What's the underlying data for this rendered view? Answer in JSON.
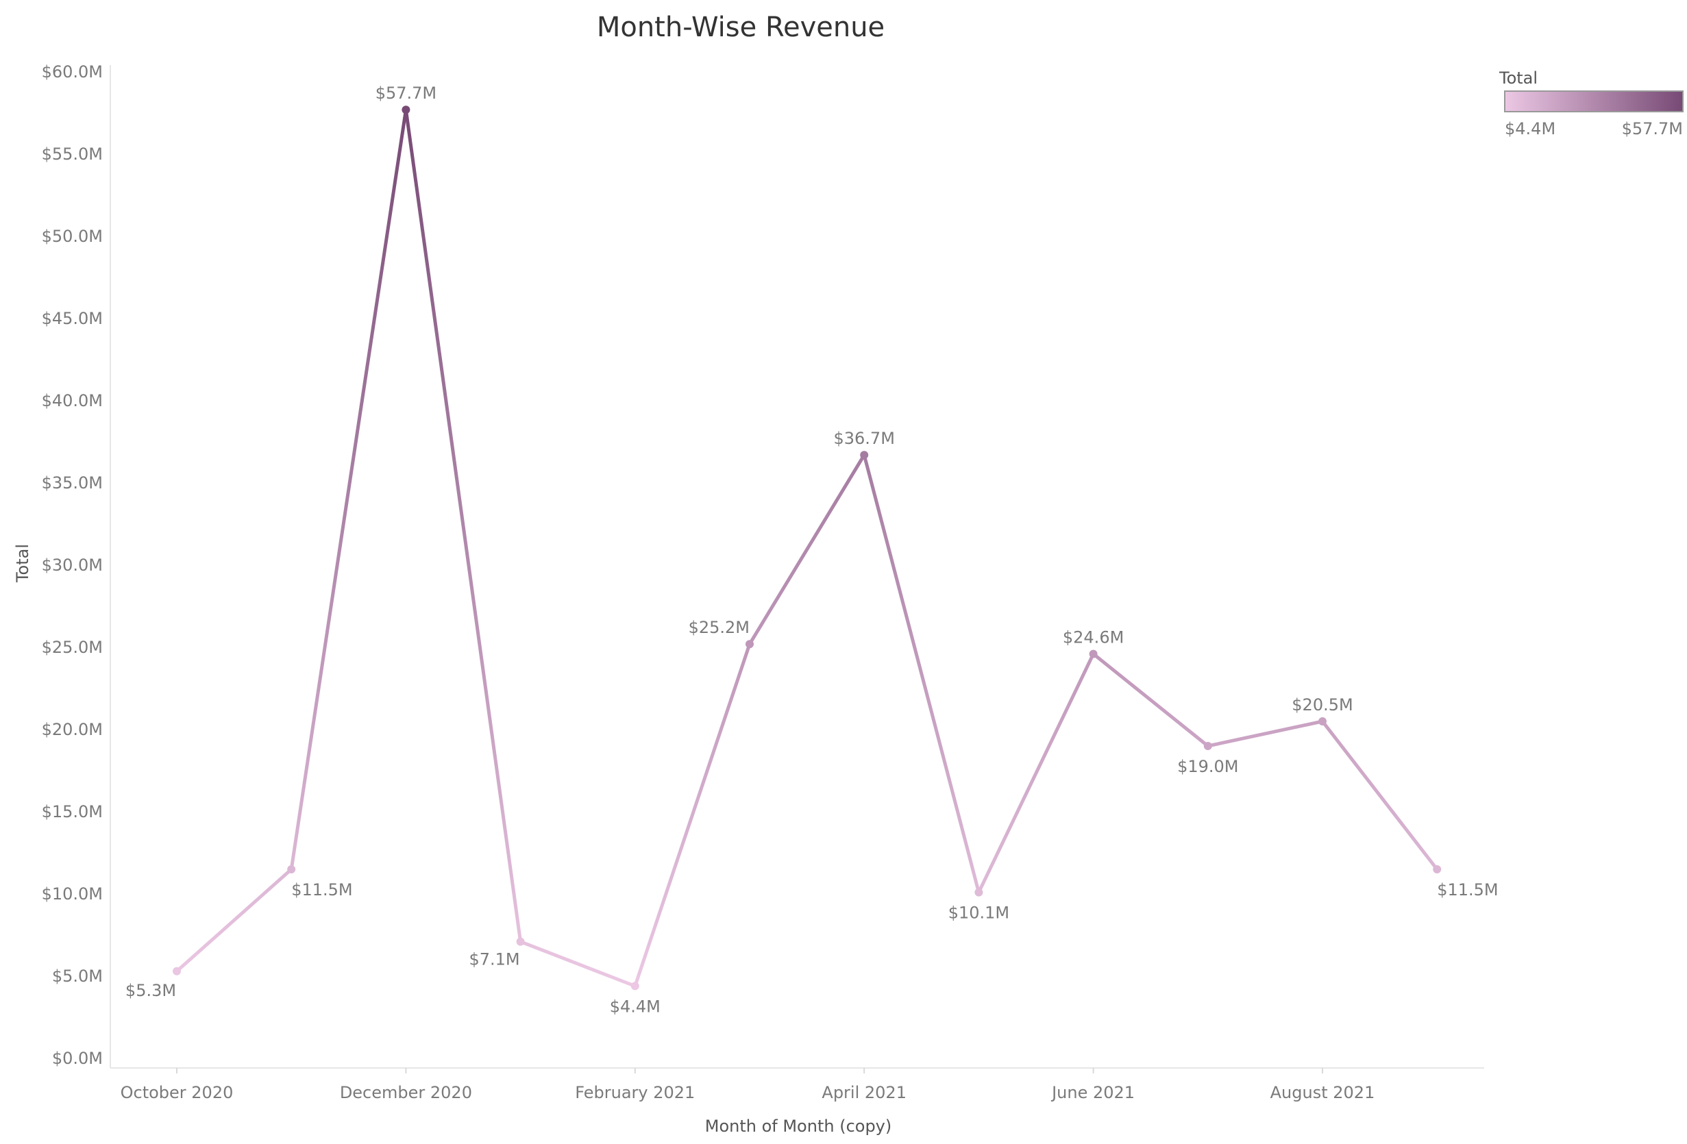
{
  "chart_data": {
    "type": "line",
    "title": "Month-Wise Revenue",
    "xlabel": "Month of Month (copy)",
    "ylabel": "Total",
    "ylim": [
      0,
      60
    ],
    "y_unit": "$M",
    "y_ticks": [
      "$0.0M",
      "$5.0M",
      "$10.0M",
      "$15.0M",
      "$20.0M",
      "$25.0M",
      "$30.0M",
      "$35.0M",
      "$40.0M",
      "$45.0M",
      "$50.0M",
      "$55.0M",
      "$60.0M"
    ],
    "x_ticks": [
      "October 2020",
      "December 2020",
      "February 2021",
      "April 2021",
      "June 2021",
      "August 2021"
    ],
    "x": [
      "2020-10",
      "2020-11",
      "2020-12",
      "2021-01",
      "2021-02",
      "2021-03",
      "2021-04",
      "2021-05",
      "2021-06",
      "2021-07",
      "2021-08",
      "2021-09"
    ],
    "values": [
      5.3,
      11.5,
      57.7,
      7.1,
      4.4,
      25.2,
      36.7,
      10.1,
      24.6,
      19.0,
      20.5,
      11.5
    ],
    "labels": [
      "$5.3M",
      "$11.5M",
      "$57.7M",
      "$7.1M",
      "$4.4M",
      "$25.2M",
      "$36.7M",
      "$10.1M",
      "$24.6M",
      "$19.0M",
      "$20.5M",
      "$11.5M"
    ],
    "label_positions": [
      "below",
      "below",
      "above",
      "below",
      "below",
      "above",
      "above",
      "below",
      "above",
      "below",
      "above",
      "below"
    ],
    "grid": false,
    "legend": {
      "title": "Total",
      "placement": "top-right",
      "min_label": "$4.4M",
      "max_label": "$57.7M",
      "min": 4.4,
      "max": 57.7,
      "color_low": "#ecc8e4",
      "color_high": "#774a75"
    }
  }
}
